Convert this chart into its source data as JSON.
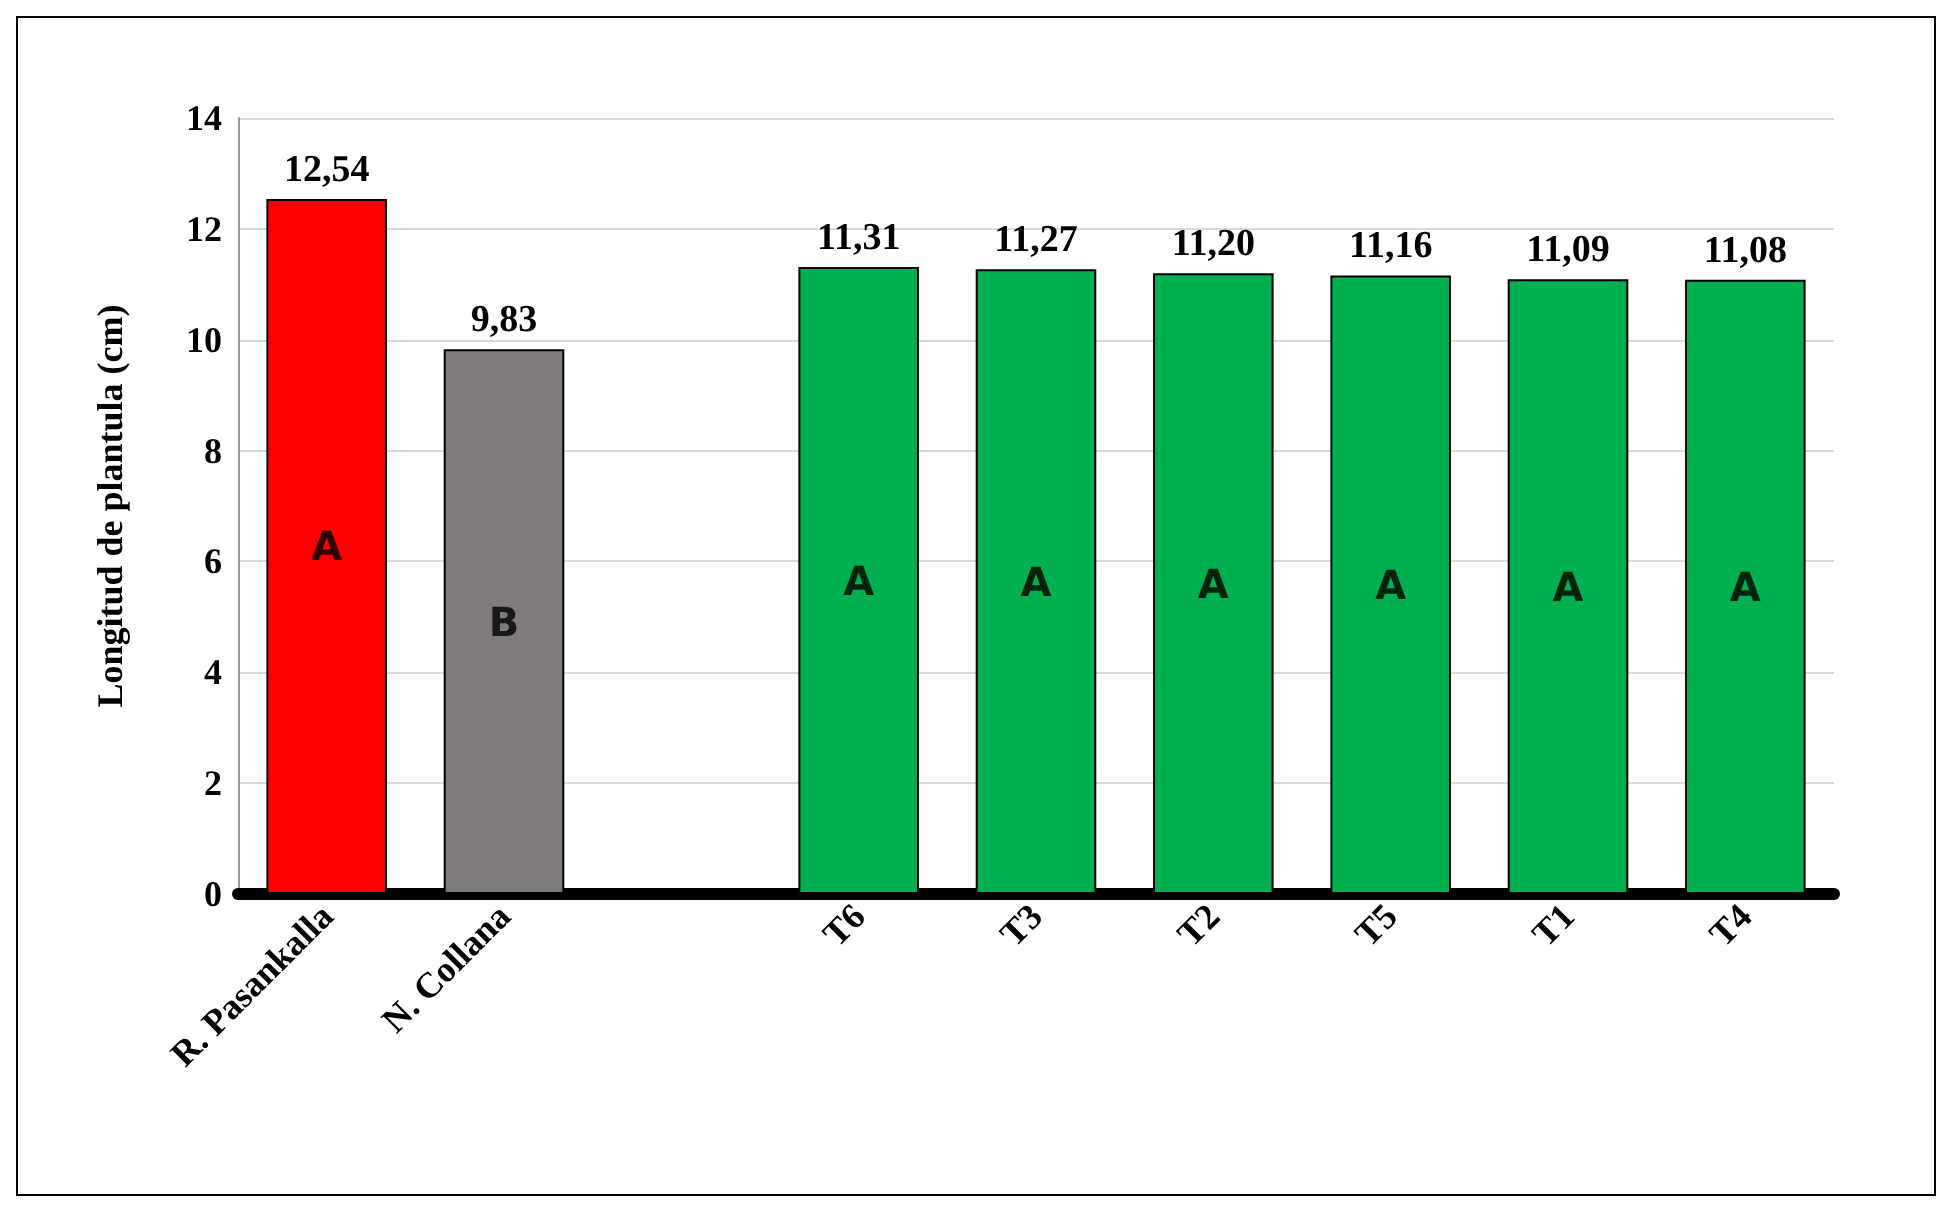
{
  "chart_data": {
    "type": "bar",
    "ylabel": "Longitud de plantula (cm)",
    "categories": [
      "R. Pasankalla",
      "N. Collana",
      null,
      "T6",
      "T3",
      "T2",
      "T5",
      "T1",
      "T4"
    ],
    "values": [
      12.54,
      9.83,
      null,
      11.31,
      11.27,
      11.2,
      11.16,
      11.09,
      11.08
    ],
    "value_labels": [
      "12,54",
      "9,83",
      null,
      "11,31",
      "11,27",
      "11,20",
      "11,16",
      "11,09",
      "11,08"
    ],
    "colors": [
      "#ff0000",
      "#7f7b7a",
      null,
      "#00b050",
      "#00b050",
      "#00b050",
      "#00b050",
      "#00b050",
      "#00b050"
    ],
    "ylim": [
      0,
      14
    ],
    "yticks": [
      0,
      2,
      4,
      6,
      8,
      10,
      12,
      14
    ],
    "grid": "y",
    "annotations": [
      "A",
      "B",
      "A",
      "A",
      "A",
      "A",
      "A",
      "A"
    ]
  }
}
